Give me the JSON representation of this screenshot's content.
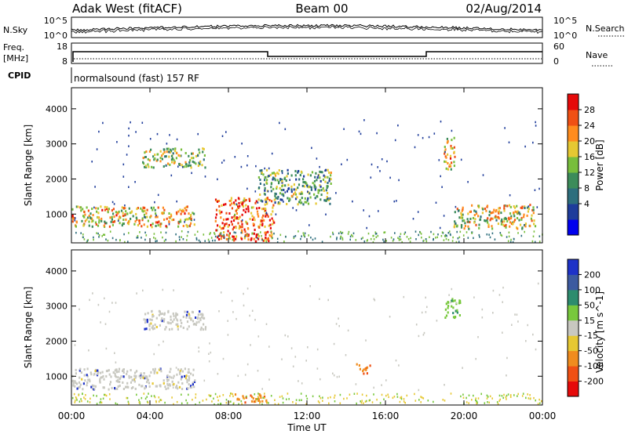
{
  "header": {
    "station": "Adak West (fitACF)",
    "beam": "Beam 00",
    "date": "02/Aug/2014"
  },
  "top_panels": {
    "nsky_label": "N.Sky",
    "nsky_ticks": [
      "10^5",
      "10^0"
    ],
    "nsearch_label": "N.Search",
    "nsearch_ticks": [
      "10^5",
      "10^0"
    ],
    "freq_label": "Freq.",
    "freq_unit": "[MHz]",
    "freq_ticks": [
      "18",
      "8"
    ],
    "nave_label": "Nave",
    "nave_ticks": [
      "60",
      "0"
    ],
    "cpid_label": "CPID",
    "cpid_text": "normalsound (fast) 157 RF"
  },
  "chart_data": [
    {
      "type": "heatmap",
      "name": "power",
      "title": "",
      "xlabel": "Time UT",
      "ylabel": "Slant Range [km]",
      "ylim": [
        180,
        4600
      ],
      "yticks": [
        "4000",
        "3000",
        "2000",
        "1000"
      ],
      "xticks": [
        "00:00",
        "04:00",
        "08:00",
        "12:00",
        "16:00",
        "20:00",
        "00:00"
      ],
      "colorbar": {
        "label": "Power [dB]",
        "ticks": [
          "28",
          "24",
          "20",
          "16",
          "12",
          "8",
          "4"
        ],
        "colors": [
          "#0000ee",
          "#1e3c9b",
          "#2d6e7d",
          "#3c8c5a",
          "#78be3c",
          "#e6c832",
          "#ff8c1e",
          "#f05014",
          "#e60a0a"
        ]
      },
      "features": [
        {
          "t0": 0.0,
          "t1": 6.3,
          "r0": 650,
          "r1": 1250,
          "level": 0.65
        },
        {
          "t0": 3.6,
          "t1": 6.8,
          "r0": 2350,
          "r1": 2900,
          "level": 0.5
        },
        {
          "t0": 7.3,
          "t1": 10.3,
          "r0": 250,
          "r1": 1500,
          "level": 0.85
        },
        {
          "t0": 9.5,
          "t1": 13.2,
          "r0": 1300,
          "r1": 2300,
          "level": 0.4
        },
        {
          "t0": 18.9,
          "t1": 19.5,
          "r0": 2300,
          "r1": 3200,
          "level": 0.7
        },
        {
          "t0": 19.4,
          "t1": 23.6,
          "r0": 600,
          "r1": 1300,
          "level": 0.6
        }
      ]
    },
    {
      "type": "heatmap",
      "name": "velocity",
      "title": "",
      "xlabel": "Time UT",
      "ylabel": "Slant Range [km]",
      "ylim": [
        180,
        4600
      ],
      "yticks": [
        "4000",
        "3000",
        "2000",
        "1000"
      ],
      "xticks": [
        "00:00",
        "04:00",
        "08:00",
        "12:00",
        "16:00",
        "20:00",
        "00:00"
      ],
      "colorbar": {
        "label": "Velocity [m s^-1]",
        "ticks": [
          "200",
          "100",
          "50",
          "15",
          "-15",
          "-50",
          "-100",
          "-200"
        ],
        "colors": [
          "#1e32c8",
          "#3c5aa0",
          "#2d8c6e",
          "#78c83c",
          "#c8c8c0",
          "#e6c832",
          "#f08c1e",
          "#f05014",
          "#e60a0a"
        ]
      },
      "features": [
        {
          "t0": 0.0,
          "t1": 6.3,
          "r0": 650,
          "r1": 1250,
          "level": 0.0
        },
        {
          "t0": 3.6,
          "t1": 6.8,
          "r0": 2350,
          "r1": 2900,
          "level": 0.0
        },
        {
          "t0": 8.3,
          "t1": 10.0,
          "r0": 280,
          "r1": 550,
          "level": -100
        },
        {
          "t0": 14.5,
          "t1": 15.2,
          "r0": 1100,
          "r1": 1400,
          "level": -100
        },
        {
          "t0": 19.0,
          "t1": 19.8,
          "r0": 2700,
          "r1": 3300,
          "level": 50
        }
      ]
    }
  ]
}
